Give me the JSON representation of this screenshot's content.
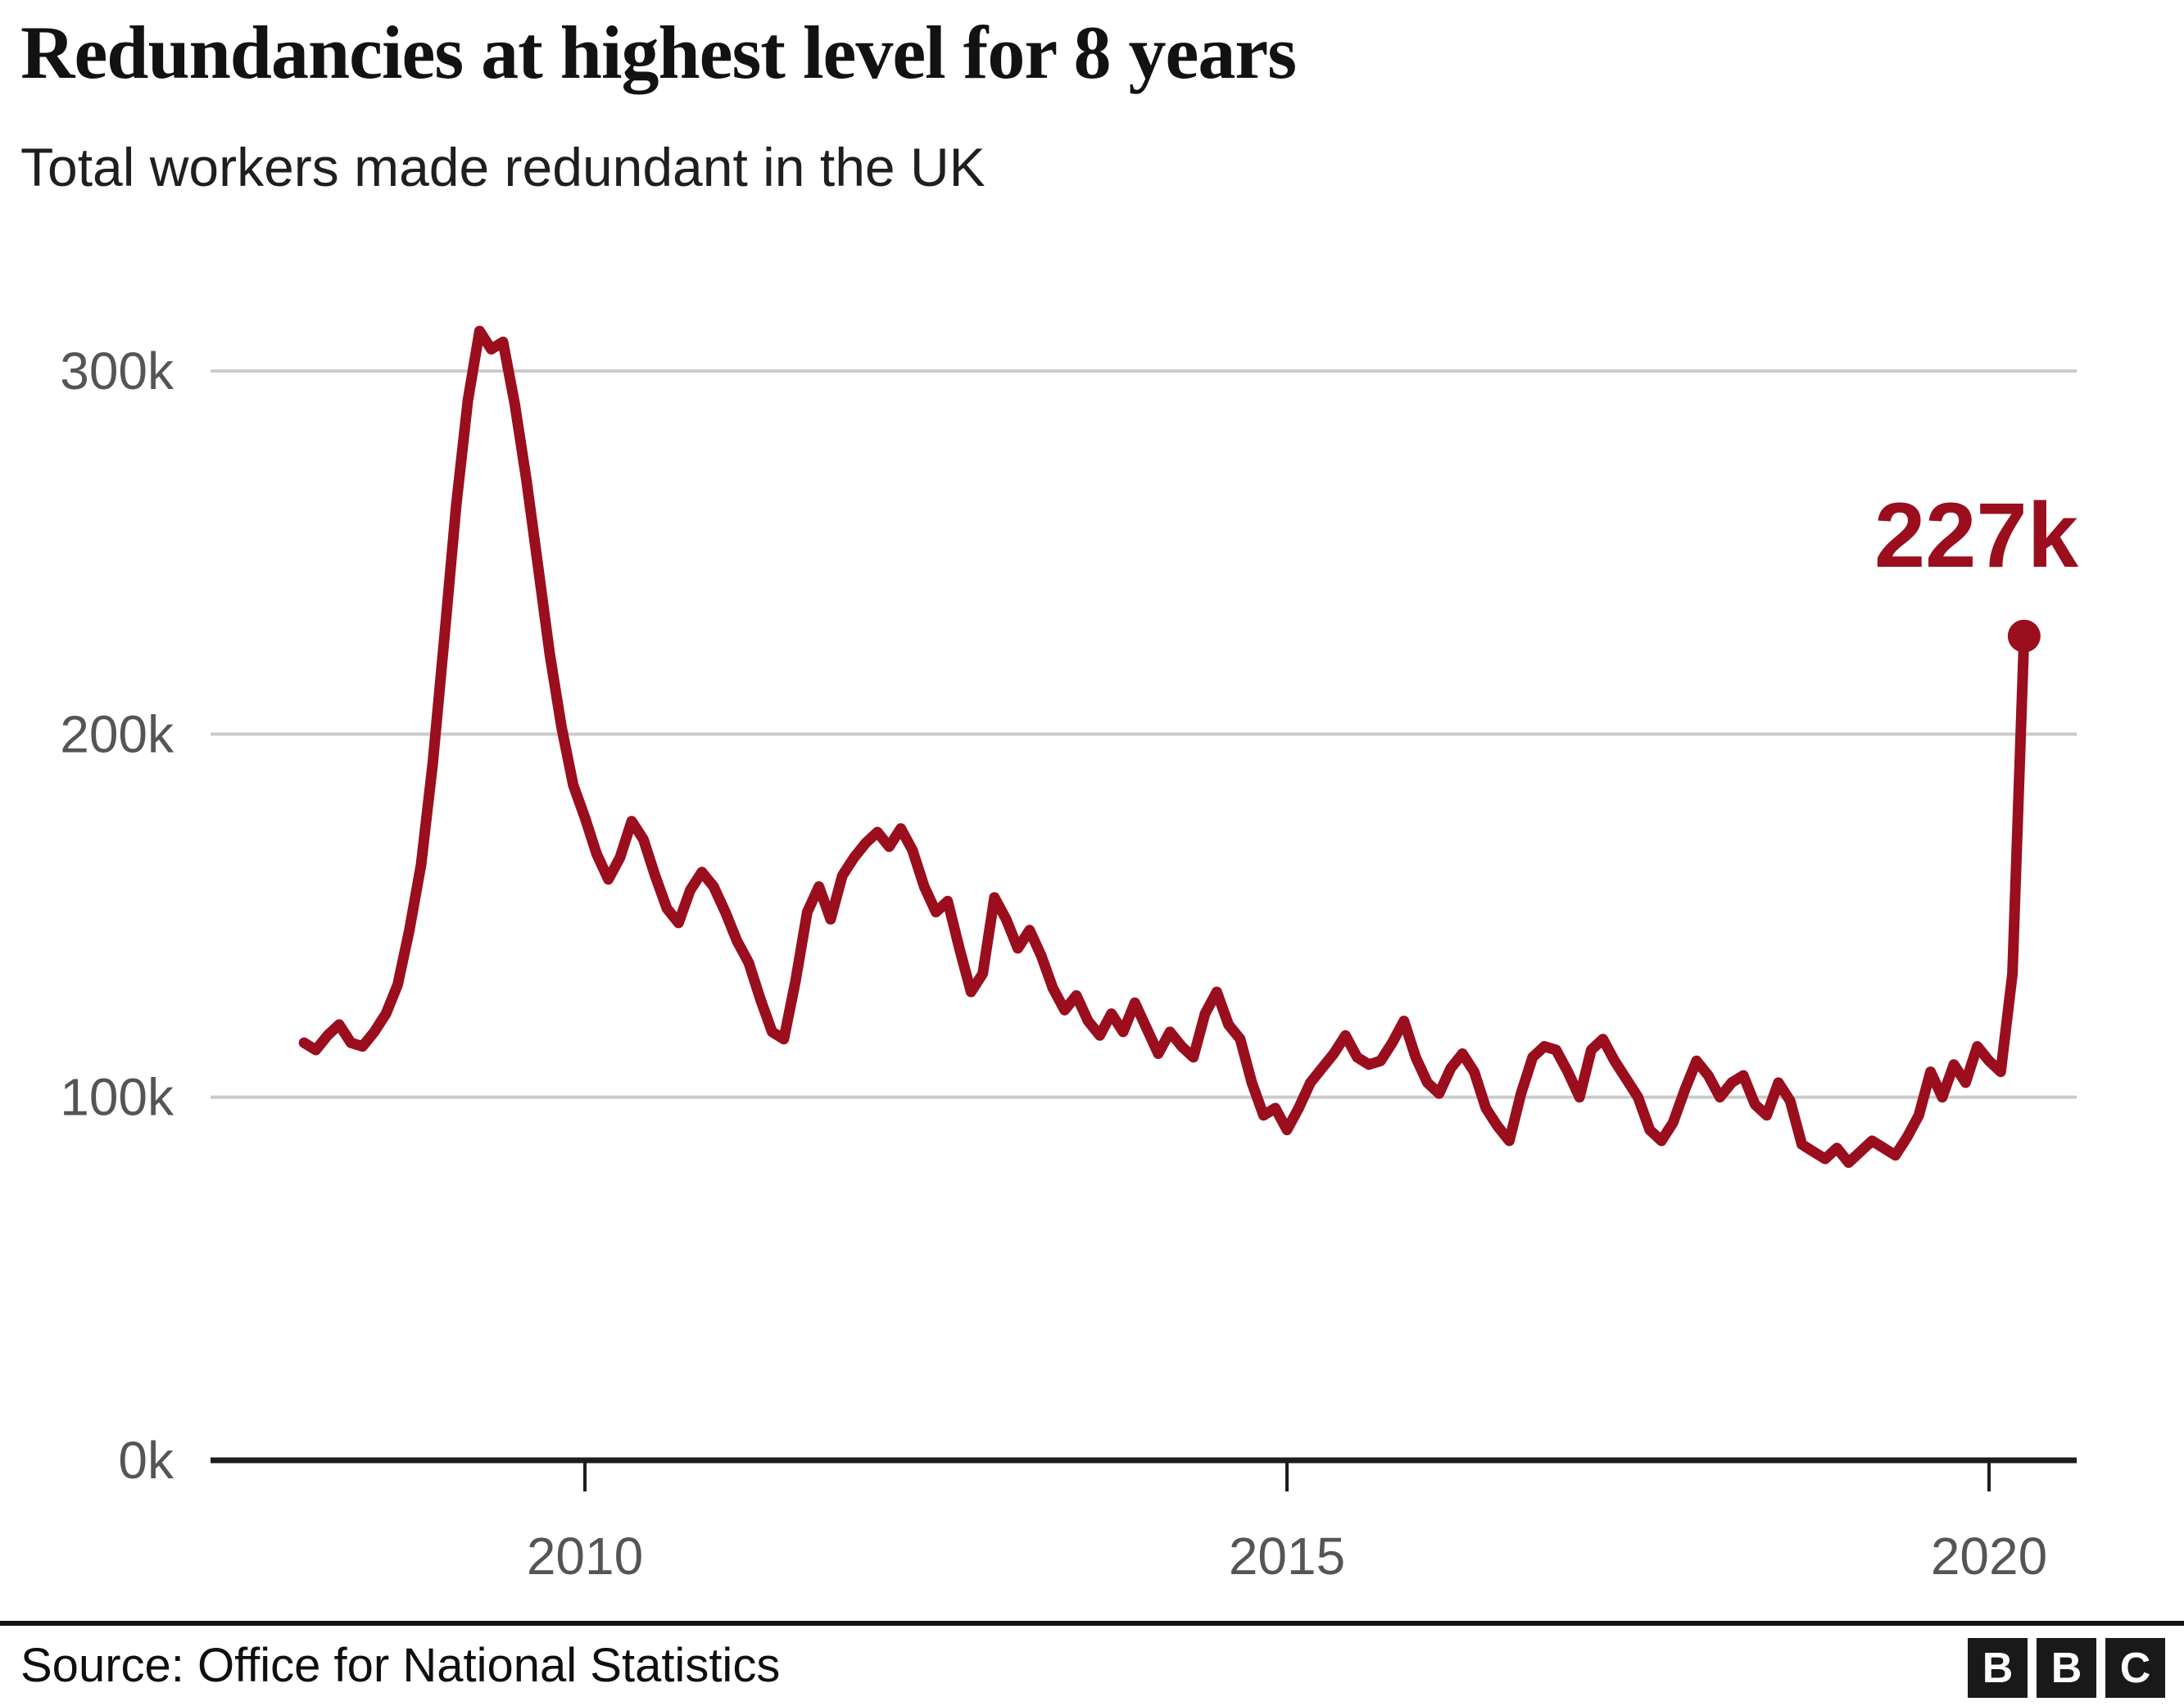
{
  "header": {
    "title": "Redundancies at highest level for 8 years",
    "subtitle": "Total workers made redundant in the UK"
  },
  "footer": {
    "source": "Source: Office for National Statistics",
    "logo_letters": [
      "B",
      "B",
      "C"
    ]
  },
  "colors": {
    "accent": "#9a0e1e",
    "gridline": "#cbcbcb",
    "axis": "#1d1d1b",
    "tick_label": "#555555"
  },
  "chart_data": {
    "type": "line",
    "title": "Redundancies at highest level for 8 years",
    "subtitle": "Total workers made redundant in the UK",
    "unit": "thousands of workers (k)",
    "grid": "horizontal gridlines on",
    "legend": "none",
    "xlim": [
      2007.7,
      2020.9
    ],
    "ylim": [
      0,
      320
    ],
    "x_ticks": [
      2010,
      2015,
      2020
    ],
    "x_tick_labels": [
      "2010",
      "2015",
      "2020"
    ],
    "y_ticks": [
      0,
      100,
      200,
      300
    ],
    "y_tick_labels": [
      "0k",
      "100k",
      "200k",
      "300k"
    ],
    "annotation": {
      "x": 2020.25,
      "value": 227,
      "label": "227k"
    },
    "series": [
      {
        "name": "Total workers made redundant in the UK",
        "x_start": 2008.0,
        "x_step": 0.083333,
        "values": [
          115,
          113,
          117,
          120,
          115,
          114,
          118,
          123,
          131,
          146,
          164,
          192,
          227,
          263,
          292,
          311,
          306,
          308,
          291,
          270,
          246,
          222,
          202,
          186,
          177,
          167,
          160,
          166,
          176,
          171,
          161,
          152,
          148,
          157,
          162,
          158,
          151,
          143,
          137,
          127,
          118,
          116,
          132,
          151,
          158,
          149,
          161,
          166,
          170,
          173,
          169,
          174,
          168,
          158,
          151,
          154,
          141,
          129,
          134,
          155,
          149,
          141,
          146,
          139,
          130,
          124,
          128,
          121,
          117,
          123,
          118,
          126,
          119,
          112,
          118,
          114,
          111,
          123,
          129,
          120,
          116,
          104,
          95,
          97,
          91,
          97,
          104,
          108,
          112,
          117,
          111,
          109,
          110,
          115,
          121,
          111,
          104,
          101,
          108,
          112,
          107,
          97,
          92,
          88,
          101,
          111,
          114,
          113,
          107,
          100,
          113,
          116,
          110,
          105,
          100,
          91,
          88,
          93,
          102,
          110,
          106,
          100,
          104,
          106,
          98,
          95,
          104,
          99,
          87,
          85,
          83,
          86,
          82,
          85,
          88,
          86,
          84,
          89,
          95,
          107,
          100,
          109,
          104,
          114,
          110,
          107,
          134,
          227
        ]
      }
    ]
  }
}
